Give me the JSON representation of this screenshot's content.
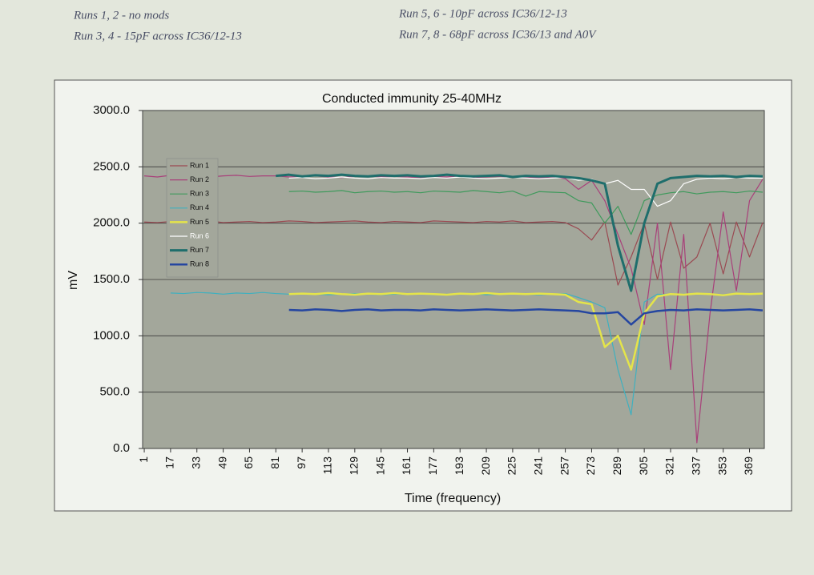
{
  "chart_data": {
    "type": "line",
    "title": "Conducted immunity 25-40MHz",
    "x_label": "Time (frequency)",
    "y_label": "mV",
    "annotations": [
      "Runs 1, 2 - no mods",
      "Run 3, 4 - 15pF across IC36/12-13",
      "Run 5, 6 - 10pF across IC36/12-13",
      "Run 7, 8 - 68pF across IC36/13 and A0V"
    ],
    "x": [
      1,
      9,
      17,
      25,
      33,
      41,
      49,
      57,
      65,
      73,
      81,
      89,
      97,
      105,
      113,
      121,
      129,
      137,
      145,
      153,
      161,
      169,
      177,
      185,
      193,
      201,
      209,
      217,
      225,
      233,
      241,
      249,
      257,
      265,
      273,
      281,
      289,
      297,
      305,
      313,
      321,
      329,
      337,
      345,
      353,
      361,
      369,
      377
    ],
    "xlim": [
      0,
      378
    ],
    "xticks": [
      1,
      17,
      33,
      49,
      65,
      81,
      97,
      113,
      129,
      145,
      161,
      177,
      193,
      209,
      225,
      241,
      257,
      273,
      289,
      305,
      321,
      337,
      353,
      369
    ],
    "ylim": [
      0,
      3000
    ],
    "yticks": [
      {
        "value": 0,
        "label": "0.0"
      },
      {
        "value": 500,
        "label": "500.0"
      },
      {
        "value": 1000,
        "label": "1000.0"
      },
      {
        "value": 1500,
        "label": "1500.0"
      },
      {
        "value": 2000,
        "label": "2000.0"
      },
      {
        "value": 2500,
        "label": "2500.0"
      },
      {
        "value": 3000,
        "label": "3000.0"
      }
    ],
    "grid": true,
    "legend": "upper-left",
    "series": [
      {
        "name": "Run 1",
        "color": "#9a4a52",
        "values": [
          2010,
          2005,
          2015,
          2000,
          2010,
          2020,
          2005,
          2010,
          2015,
          2005,
          2010,
          2020,
          2015,
          2005,
          2010,
          2015,
          2020,
          2010,
          2005,
          2015,
          2010,
          2005,
          2020,
          2015,
          2010,
          2005,
          2015,
          2010,
          2020,
          2005,
          2010,
          2015,
          2005,
          1950,
          1850,
          2010,
          1450,
          1700,
          2000,
          1500,
          2010,
          1600,
          1700,
          2000,
          1550,
          2010,
          1700,
          2005
        ]
      },
      {
        "name": "Run 2",
        "color": "#a8407a",
        "values": [
          2420,
          2410,
          2425,
          2415,
          2420,
          2410,
          2420,
          2425,
          2415,
          2420,
          2420,
          2410,
          2415,
          2420,
          2410,
          2405,
          2415,
          2420,
          2410,
          2415,
          2410,
          2405,
          2415,
          2410,
          2420,
          2405,
          2410,
          2415,
          2405,
          2410,
          2400,
          2410,
          2395,
          2300,
          2380,
          2200,
          1900,
          1600,
          1100,
          2000,
          700,
          1900,
          50,
          1200,
          2100,
          1400,
          2200,
          2390
        ]
      },
      {
        "name": "Run 3",
        "color": "#3f9a5c",
        "values": [
          null,
          null,
          null,
          null,
          null,
          null,
          null,
          null,
          null,
          null,
          null,
          2280,
          2285,
          2275,
          2280,
          2290,
          2270,
          2280,
          2285,
          2275,
          2280,
          2270,
          2285,
          2280,
          2275,
          2290,
          2280,
          2270,
          2285,
          2240,
          2280,
          2275,
          2270,
          2200,
          2180,
          2000,
          2150,
          1900,
          2200,
          2250,
          2270,
          2280,
          2260,
          2275,
          2280,
          2270,
          2285,
          2275
        ]
      },
      {
        "name": "Run 4",
        "color": "#3fb0bf",
        "values": [
          null,
          null,
          1380,
          1375,
          1385,
          1380,
          1370,
          1380,
          1375,
          1385,
          1375,
          1370,
          1375,
          1370,
          1365,
          1370,
          1375,
          1370,
          1365,
          1370,
          1370,
          1375,
          1365,
          1370,
          1370,
          1375,
          1365,
          1370,
          1375,
          1370,
          1365,
          1370,
          1375,
          1340,
          1300,
          1250,
          700,
          300,
          1300,
          1370,
          1365,
          1370,
          1375,
          1370,
          1365,
          1370,
          1375,
          1370
        ]
      },
      {
        "name": "Run 5",
        "color": "#e4e44a",
        "values": [
          null,
          null,
          null,
          null,
          null,
          null,
          null,
          null,
          null,
          null,
          null,
          1370,
          1375,
          1370,
          1380,
          1370,
          1365,
          1375,
          1370,
          1380,
          1370,
          1375,
          1370,
          1365,
          1375,
          1370,
          1380,
          1370,
          1375,
          1370,
          1375,
          1370,
          1365,
          1300,
          1280,
          900,
          1000,
          700,
          1200,
          1350,
          1370,
          1365,
          1375,
          1370,
          1360,
          1375,
          1370,
          1375
        ]
      },
      {
        "name": "Run 6",
        "color": "#ffffff",
        "values": [
          null,
          null,
          null,
          null,
          null,
          null,
          null,
          null,
          null,
          null,
          null,
          2400,
          2405,
          2395,
          2400,
          2410,
          2400,
          2395,
          2405,
          2400,
          2400,
          2395,
          2405,
          2400,
          2410,
          2400,
          2395,
          2400,
          2405,
          2400,
          2395,
          2400,
          2405,
          2380,
          2390,
          2350,
          2380,
          2300,
          2300,
          2150,
          2200,
          2350,
          2390,
          2400,
          2395,
          2405,
          2400,
          2400
        ]
      },
      {
        "name": "Run 7",
        "color": "#1f6e6c",
        "values": [
          null,
          null,
          null,
          null,
          null,
          null,
          null,
          null,
          null,
          null,
          2420,
          2430,
          2415,
          2425,
          2420,
          2430,
          2420,
          2415,
          2425,
          2420,
          2425,
          2415,
          2420,
          2430,
          2420,
          2415,
          2420,
          2425,
          2410,
          2420,
          2415,
          2420,
          2410,
          2400,
          2380,
          2350,
          1800,
          1400,
          2000,
          2350,
          2400,
          2410,
          2420,
          2415,
          2420,
          2410,
          2420,
          2415
        ]
      },
      {
        "name": "Run 8",
        "color": "#2546a0",
        "values": [
          null,
          null,
          null,
          null,
          null,
          null,
          null,
          null,
          null,
          null,
          null,
          1230,
          1225,
          1235,
          1230,
          1220,
          1230,
          1235,
          1225,
          1230,
          1230,
          1225,
          1235,
          1230,
          1225,
          1230,
          1235,
          1230,
          1225,
          1230,
          1235,
          1230,
          1225,
          1220,
          1200,
          1200,
          1210,
          1100,
          1200,
          1220,
          1230,
          1225,
          1235,
          1230,
          1225,
          1230,
          1235,
          1225
        ]
      }
    ]
  }
}
